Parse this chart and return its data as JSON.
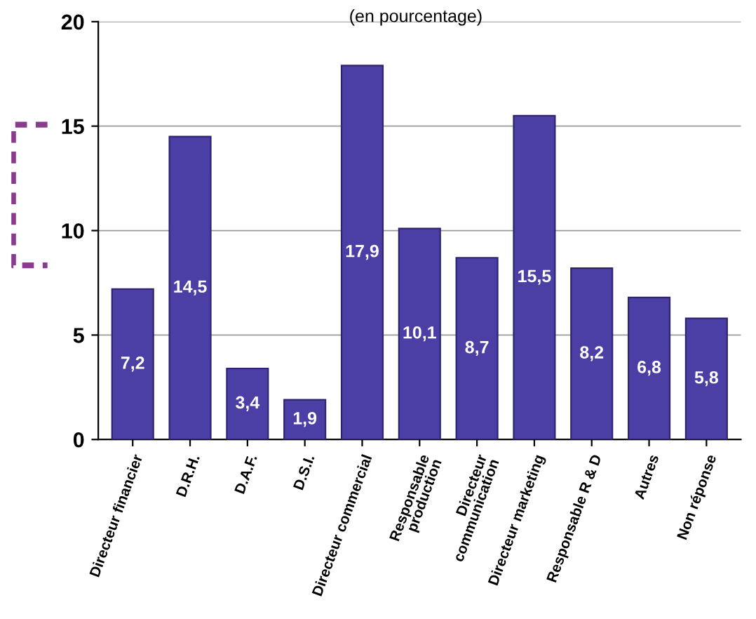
{
  "chart_data": {
    "type": "bar",
    "subtitle": "(en pourcentage)",
    "categories": [
      "Directeur financier",
      "D.R.H.",
      "D.A.F.",
      "D.S.I.",
      "Directeur commercial",
      "Responsable\nproduction",
      "Directeur\ncommunication",
      "Directeur marketing",
      "Responsable R & D",
      "Autres",
      "Non réponse"
    ],
    "values": [
      7.2,
      14.5,
      3.4,
      1.9,
      17.9,
      10.1,
      8.7,
      15.5,
      8.2,
      6.8,
      5.8
    ],
    "value_labels": [
      "7,2",
      "14,5",
      "3,4",
      "1,9",
      "17,9",
      "10,1",
      "8,7",
      "15,5",
      "8,2",
      "6,8",
      "5,8"
    ],
    "color": "#4b3fa6",
    "ylim": [
      0,
      20
    ],
    "yticks": [
      0,
      5,
      10,
      15,
      20
    ],
    "grid": "y"
  }
}
